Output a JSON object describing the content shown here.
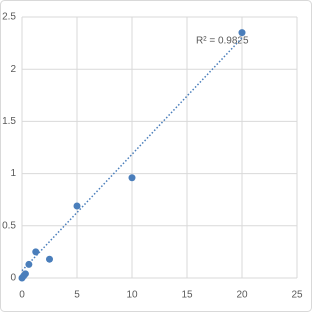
{
  "chart_data": {
    "type": "scatter",
    "x": [
      0,
      0.156,
      0.313,
      0.625,
      1.25,
      2.5,
      5,
      10,
      20
    ],
    "series": [
      {
        "color": "#4a7ebb",
        "values": [
          0.0,
          0.02,
          0.04,
          0.13,
          0.25,
          0.18,
          0.69,
          0.96,
          2.35
        ]
      }
    ],
    "trendline": {
      "x": [
        0,
        20
      ],
      "values": [
        0.07,
        2.3
      ],
      "color": "#4a7ebb"
    },
    "annotation": "R² = 0.9825",
    "xlim": [
      0,
      25
    ],
    "xticks": [
      0,
      5,
      10,
      15,
      20,
      25
    ],
    "ylim": [
      0,
      2.5
    ],
    "yticks": [
      0,
      0.5,
      1,
      1.5,
      2,
      2.5
    ],
    "grid": true
  }
}
